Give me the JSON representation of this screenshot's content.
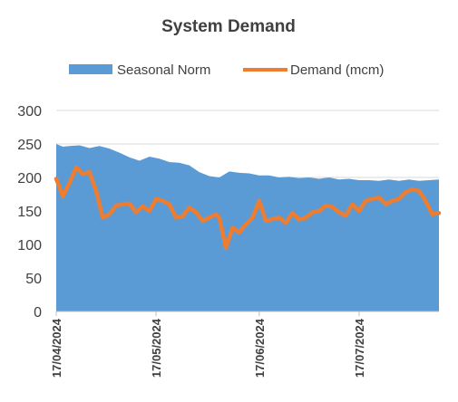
{
  "chart_data": {
    "type": "area",
    "title": "System Demand",
    "xlabel": "",
    "ylabel": "",
    "ylim": [
      0,
      300
    ],
    "yticks": [
      0,
      50,
      100,
      150,
      200,
      250,
      300
    ],
    "grid": true,
    "legend_position": "top",
    "x_tick_labels": [
      "17/04/2024",
      "17/05/2024",
      "17/06/2024",
      "17/07/2024"
    ],
    "x_range": [
      "2024-04-17",
      "2024-08-10"
    ],
    "colors": {
      "Seasonal Norm": "#5b9bd5",
      "Demand (mcm)": "#ed7d31"
    },
    "series": [
      {
        "name": "Seasonal Norm",
        "type": "area",
        "x": [
          "2024-04-17",
          "2024-04-19",
          "2024-04-21",
          "2024-04-24",
          "2024-04-27",
          "2024-04-30",
          "2024-05-03",
          "2024-05-06",
          "2024-05-09",
          "2024-05-12",
          "2024-05-15",
          "2024-05-18",
          "2024-05-21",
          "2024-05-24",
          "2024-05-27",
          "2024-05-30",
          "2024-06-02",
          "2024-06-05",
          "2024-06-08",
          "2024-06-11",
          "2024-06-14",
          "2024-06-17",
          "2024-06-20",
          "2024-06-23",
          "2024-06-26",
          "2024-06-29",
          "2024-07-02",
          "2024-07-05",
          "2024-07-08",
          "2024-07-11",
          "2024-07-14",
          "2024-07-17",
          "2024-07-20",
          "2024-07-23",
          "2024-07-26",
          "2024-07-29",
          "2024-08-01",
          "2024-08-04",
          "2024-08-07",
          "2024-08-10"
        ],
        "values": [
          250,
          246,
          247,
          248,
          244,
          247,
          243,
          237,
          230,
          225,
          231,
          228,
          223,
          222,
          218,
          208,
          202,
          200,
          209,
          207,
          206,
          203,
          203,
          200,
          201,
          199,
          200,
          198,
          200,
          197,
          198,
          196,
          196,
          195,
          197,
          195,
          197,
          195,
          196,
          197
        ]
      },
      {
        "name": "Demand (mcm)",
        "type": "line",
        "x": [
          "2024-04-17",
          "2024-04-19",
          "2024-04-21",
          "2024-04-23",
          "2024-04-25",
          "2024-04-27",
          "2024-04-29",
          "2024-05-01",
          "2024-05-03",
          "2024-05-05",
          "2024-05-07",
          "2024-05-09",
          "2024-05-11",
          "2024-05-13",
          "2024-05-15",
          "2024-05-17",
          "2024-05-19",
          "2024-05-21",
          "2024-05-23",
          "2024-05-25",
          "2024-05-27",
          "2024-05-29",
          "2024-05-31",
          "2024-06-02",
          "2024-06-04",
          "2024-06-05",
          "2024-06-07",
          "2024-06-09",
          "2024-06-11",
          "2024-06-13",
          "2024-06-15",
          "2024-06-17",
          "2024-06-19",
          "2024-06-21",
          "2024-06-23",
          "2024-06-25",
          "2024-06-27",
          "2024-06-29",
          "2024-07-01",
          "2024-07-03",
          "2024-07-05",
          "2024-07-07",
          "2024-07-09",
          "2024-07-11",
          "2024-07-13",
          "2024-07-15",
          "2024-07-17",
          "2024-07-19",
          "2024-07-21",
          "2024-07-23",
          "2024-07-25",
          "2024-07-27",
          "2024-07-29",
          "2024-07-31",
          "2024-08-02",
          "2024-08-04",
          "2024-08-06",
          "2024-08-08",
          "2024-08-10"
        ],
        "values": [
          198,
          172,
          192,
          215,
          205,
          208,
          180,
          140,
          145,
          158,
          160,
          161,
          148,
          157,
          150,
          168,
          165,
          160,
          140,
          142,
          155,
          148,
          135,
          140,
          145,
          140,
          95,
          125,
          118,
          130,
          140,
          165,
          135,
          138,
          140,
          132,
          147,
          137,
          140,
          148,
          150,
          158,
          156,
          148,
          143,
          160,
          150,
          165,
          168,
          170,
          160,
          165,
          168,
          178,
          182,
          180,
          165,
          145,
          147
        ]
      }
    ]
  }
}
